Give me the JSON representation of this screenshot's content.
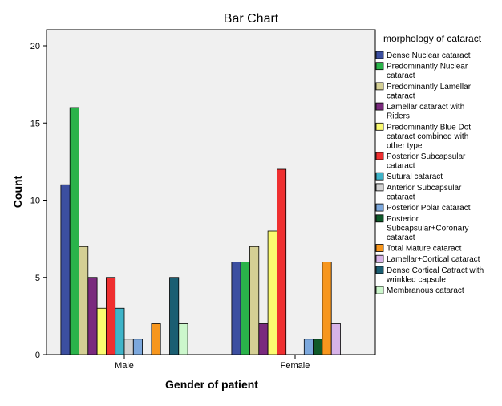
{
  "chart_data": {
    "type": "bar",
    "title": "Bar Chart",
    "xlabel": "Gender of patient",
    "ylabel": "Count",
    "ylim": [
      0,
      20
    ],
    "yticks": [
      0,
      5,
      10,
      15,
      20
    ],
    "categories": [
      "Male",
      "Female"
    ],
    "legend_title": "morphology of cataract",
    "legend_position": "right",
    "grid": false,
    "series": [
      {
        "name": "Dense Nuclear cataract",
        "color": "#3c4fa0",
        "values": [
          11,
          6
        ]
      },
      {
        "name": "Predominantly Nuclear cataract",
        "color": "#2ab34a",
        "values": [
          16,
          6
        ]
      },
      {
        "name": "Predominantly Lamellar cataract",
        "color": "#d4cf94",
        "values": [
          7,
          7
        ]
      },
      {
        "name": "Lamellar cataract with Riders",
        "color": "#7a2a7e",
        "values": [
          5,
          2
        ]
      },
      {
        "name": "Predominantly Blue Dot cataract combined with other type",
        "color": "#fbfb70",
        "values": [
          3,
          8
        ]
      },
      {
        "name": "Posterior Subcapsular cataract",
        "color": "#ef2f30",
        "values": [
          5,
          12
        ]
      },
      {
        "name": "Sutural cataract",
        "color": "#3fb4c9",
        "values": [
          3,
          0
        ]
      },
      {
        "name": "Anterior Subcapsular cataract",
        "color": "#d2d2d2",
        "values": [
          1,
          0
        ]
      },
      {
        "name": "Posterior Polar cataract",
        "color": "#7ca8dd",
        "values": [
          1,
          1
        ]
      },
      {
        "name": "Posterior Subcapsular+Coronary cataract",
        "color": "#0f5a2a",
        "values": [
          0,
          1
        ]
      },
      {
        "name": "Total Mature cataract",
        "color": "#f7961d",
        "values": [
          2,
          6
        ]
      },
      {
        "name": "Lamellar+Cortical cataract",
        "color": "#d7b3e8",
        "values": [
          0,
          2
        ]
      },
      {
        "name": "Dense Cortical Catract with wrinkled capsule",
        "color": "#1a5e72",
        "values": [
          5,
          0
        ]
      },
      {
        "name": "Membranous cataract",
        "color": "#ccf7cc",
        "values": [
          2,
          0
        ]
      }
    ],
    "legend_lines": [
      [
        "Dense Nuclear cataract"
      ],
      [
        "Predominantly Nuclear",
        "cataract"
      ],
      [
        "Predominantly Lamellar",
        "cataract"
      ],
      [
        "Lamellar cataract with",
        "Riders"
      ],
      [
        "Predominantly Blue Dot",
        "cataract combined with",
        "other type"
      ],
      [
        "Posterior Subcapsular",
        "cataract"
      ],
      [
        "Sutural cataract"
      ],
      [
        "Anterior Subcapsular",
        "cataract"
      ],
      [
        "Posterior Polar cataract"
      ],
      [
        "Posterior",
        "Subcapsular+Coronary",
        "cataract"
      ],
      [
        "Total Mature cataract"
      ],
      [
        "Lamellar+Cortical cataract"
      ],
      [
        "Dense Cortical Catract with",
        "wrinkled capsule"
      ],
      [
        "Membranous cataract"
      ]
    ]
  }
}
